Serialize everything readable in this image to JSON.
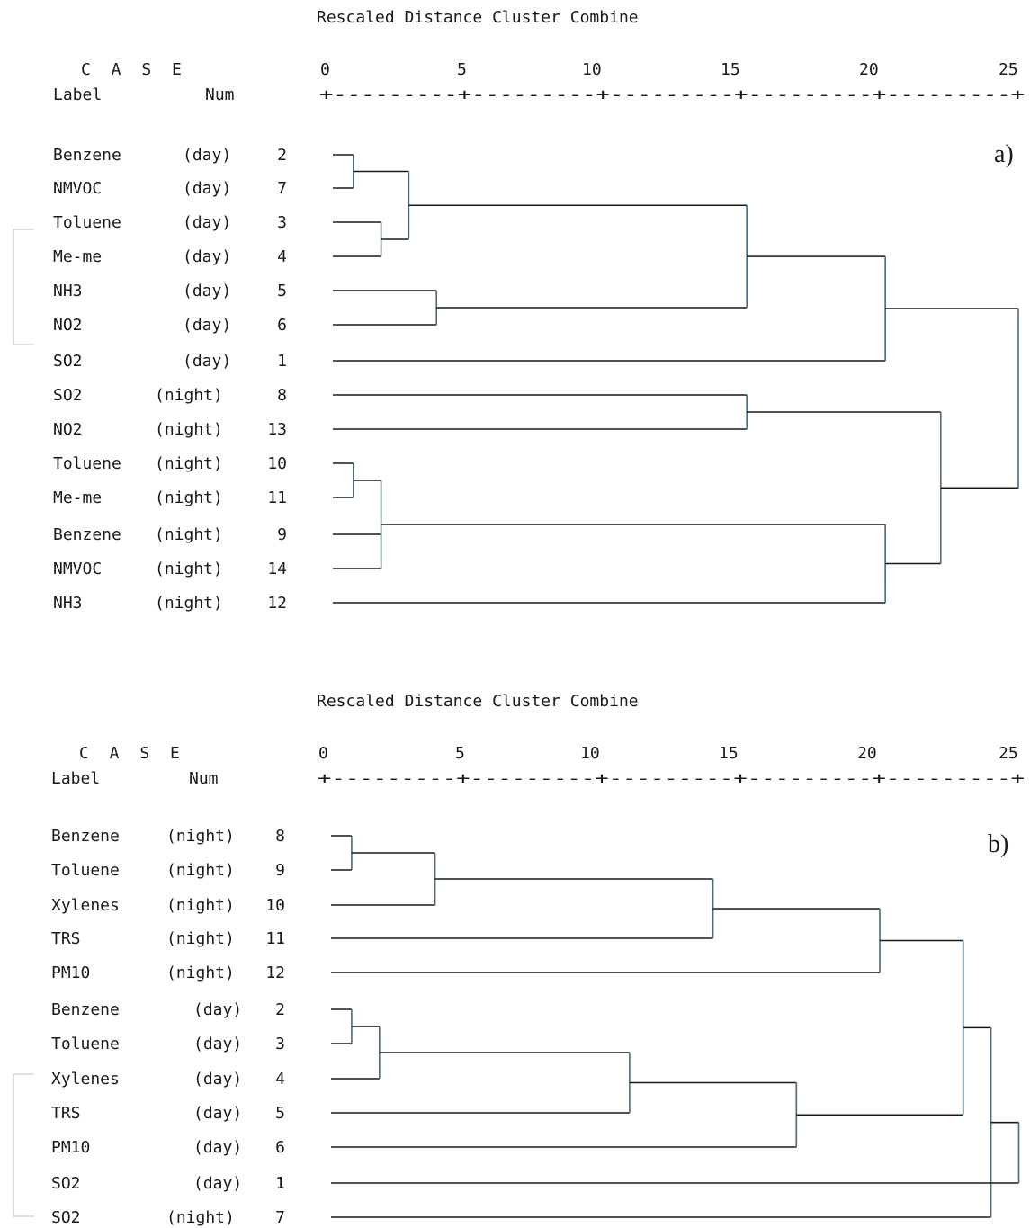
{
  "panels": [
    {
      "title": "Rescaled Distance Cluster Combine",
      "case_header": "C A S E",
      "label_header": "Label",
      "num_header": "Num",
      "scale_ticks": [
        "0",
        "5",
        "10",
        "15",
        "20",
        "25"
      ],
      "scale_line": "+---------+---------+---------+---------+---------+",
      "panel_label": "a)",
      "cases": [
        {
          "name": "Benzene",
          "period": "(day)",
          "num": "2"
        },
        {
          "name": "NMVOC",
          "period": "(day)",
          "num": "7"
        },
        {
          "name": "Toluene",
          "period": "(day)",
          "num": "3"
        },
        {
          "name": "Me-me",
          "period": "(day)",
          "num": "4"
        },
        {
          "name": "NH3",
          "period": "(day)",
          "num": "5"
        },
        {
          "name": "NO2",
          "period": "(day)",
          "num": "6"
        },
        {
          "name": "SO2",
          "period": "(day)",
          "num": "1"
        },
        {
          "name": "SO2",
          "period": "(night)",
          "num": "8"
        },
        {
          "name": "NO2",
          "period": "(night)",
          "num": "13"
        },
        {
          "name": "Toluene",
          "period": "(night)",
          "num": "10"
        },
        {
          "name": "Me-me",
          "period": "(night)",
          "num": "11"
        },
        {
          "name": "Benzene",
          "period": "(night)",
          "num": "9"
        },
        {
          "name": "NMVOC",
          "period": "(night)",
          "num": "14"
        },
        {
          "name": "NH3",
          "period": "(night)",
          "num": "12"
        }
      ],
      "merges": [
        {
          "a": 0,
          "b": 1,
          "d": 1.0
        },
        {
          "a": 2,
          "b": 3,
          "d": 2.0
        },
        {
          "a": 4,
          "b": 5,
          "d": 4.0
        },
        {
          "a": 14,
          "b": 15,
          "d": 3.0
        },
        {
          "a": 17,
          "b": 16,
          "d": 15.2
        },
        {
          "a": 18,
          "b": 6,
          "d": 20.2
        },
        {
          "a": 7,
          "b": 8,
          "d": 15.2
        },
        {
          "a": 9,
          "b": 10,
          "d": 1.0
        },
        {
          "a": 21,
          "b": 11,
          "b2": 12,
          "d": 2.0
        },
        {
          "a": 22,
          "b": 13,
          "d": 20.2
        },
        {
          "a": 20,
          "b": 23,
          "d": 22.2
        },
        {
          "a": 19,
          "b": 24,
          "d": 25.0
        }
      ]
    },
    {
      "title": "Rescaled Distance Cluster Combine",
      "case_header": "C A S E",
      "label_header": "Label",
      "num_header": "Num",
      "scale_ticks": [
        "0",
        "5",
        "10",
        "15",
        "20",
        "25"
      ],
      "scale_line": "+---------+---------+---------+---------+---------+",
      "panel_label": "b)",
      "cases": [
        {
          "name": "Benzene",
          "period": "(night)",
          "num": "8"
        },
        {
          "name": "Toluene",
          "period": "(night)",
          "num": "9"
        },
        {
          "name": "Xylenes",
          "period": "(night)",
          "num": "10"
        },
        {
          "name": "TRS",
          "period": "(night)",
          "num": "11"
        },
        {
          "name": "PM10",
          "period": "(night)",
          "num": "12"
        },
        {
          "name": "Benzene",
          "period": "(day)",
          "num": "2"
        },
        {
          "name": "Toluene",
          "period": "(day)",
          "num": "3"
        },
        {
          "name": "Xylenes",
          "period": "(day)",
          "num": "4"
        },
        {
          "name": "TRS",
          "period": "(day)",
          "num": "5"
        },
        {
          "name": "PM10",
          "period": "(day)",
          "num": "6"
        },
        {
          "name": "SO2",
          "period": "(day)",
          "num": "1"
        },
        {
          "name": "SO2",
          "period": "(night)",
          "num": "7"
        }
      ],
      "merges": [
        {
          "a": 0,
          "b": 1,
          "d": 1.0
        },
        {
          "a": 12,
          "b": 2,
          "d": 4.0
        },
        {
          "a": 13,
          "b": 3,
          "d": 14.0
        },
        {
          "a": 14,
          "b": 4,
          "d": 20.0
        },
        {
          "a": 5,
          "b": 6,
          "d": 1.0
        },
        {
          "a": 16,
          "b": 7,
          "d": 2.0
        },
        {
          "a": 17,
          "b": 8,
          "d": 11.0
        },
        {
          "a": 18,
          "b": 9,
          "d": 17.0
        },
        {
          "a": 15,
          "b": 19,
          "d": 23.0
        },
        {
          "a": 20,
          "b": 11,
          "d": 24.0
        },
        {
          "a": 21,
          "b": 10,
          "d": 25.0
        }
      ]
    }
  ]
}
